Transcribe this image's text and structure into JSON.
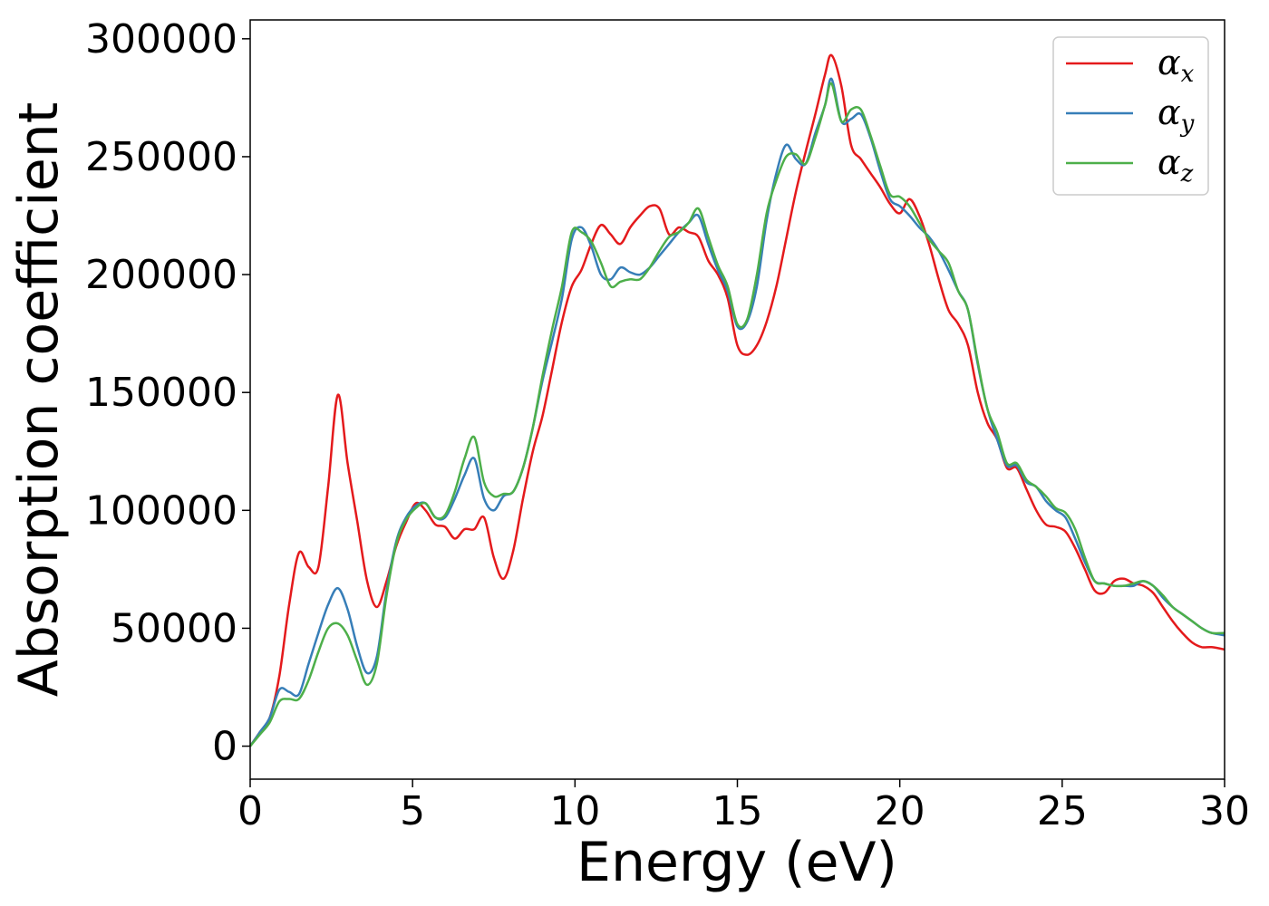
{
  "chart_data": {
    "type": "line",
    "xlabel": "Energy (eV)",
    "ylabel": "Absorption coefficient",
    "xlim": [
      0,
      30
    ],
    "ylim": [
      -14000,
      308000
    ],
    "xticks": [
      0,
      5,
      10,
      15,
      20,
      25,
      30
    ],
    "yticks": [
      0,
      50000,
      100000,
      150000,
      200000,
      250000,
      300000
    ],
    "grid": false,
    "legend_position": "top-right",
    "series": [
      {
        "name": "α",
        "subscript": "x",
        "color": "#e41a1c",
        "x": [
          0,
          0.3,
          0.6,
          0.9,
          1.2,
          1.5,
          1.8,
          2.1,
          2.4,
          2.7,
          3.0,
          3.3,
          3.6,
          3.9,
          4.2,
          4.5,
          4.8,
          5.1,
          5.4,
          5.7,
          6.0,
          6.3,
          6.6,
          6.9,
          7.2,
          7.5,
          7.8,
          8.1,
          8.4,
          8.7,
          9.0,
          9.3,
          9.6,
          9.9,
          10.2,
          10.5,
          10.8,
          11.1,
          11.4,
          11.7,
          12.0,
          12.3,
          12.6,
          12.9,
          13.2,
          13.5,
          13.8,
          14.1,
          14.4,
          14.7,
          15.0,
          15.3,
          15.6,
          15.9,
          16.2,
          16.5,
          16.8,
          17.1,
          17.4,
          17.7,
          17.9,
          18.2,
          18.5,
          18.8,
          19.1,
          19.4,
          19.7,
          20.0,
          20.3,
          20.6,
          20.9,
          21.2,
          21.5,
          21.8,
          22.1,
          22.4,
          22.7,
          23.0,
          23.3,
          23.6,
          23.9,
          24.2,
          24.5,
          24.8,
          25.1,
          25.4,
          25.7,
          26.0,
          26.3,
          26.6,
          26.9,
          27.2,
          27.5,
          27.8,
          28.1,
          28.4,
          28.7,
          29.0,
          29.3,
          29.6,
          30.0
        ],
        "y": [
          0,
          6000,
          12000,
          30000,
          60000,
          82000,
          76000,
          76000,
          110000,
          149000,
          120000,
          95000,
          70000,
          59000,
          70000,
          85000,
          95000,
          103000,
          100000,
          94000,
          93000,
          88000,
          92000,
          92000,
          97000,
          80000,
          71000,
          83000,
          105000,
          125000,
          140000,
          160000,
          180000,
          195000,
          202000,
          213000,
          221000,
          217000,
          213000,
          220000,
          225000,
          229000,
          228000,
          217000,
          220000,
          218000,
          216000,
          206000,
          200000,
          190000,
          170000,
          166000,
          170000,
          180000,
          195000,
          215000,
          235000,
          252000,
          268000,
          285000,
          293000,
          280000,
          255000,
          249000,
          243000,
          237000,
          230000,
          226000,
          232000,
          225000,
          213000,
          198000,
          185000,
          179000,
          170000,
          150000,
          137000,
          130000,
          118000,
          118000,
          109000,
          100000,
          94000,
          93000,
          91000,
          84000,
          75000,
          66000,
          65000,
          70000,
          71000,
          69000,
          68000,
          65000,
          59000,
          53000,
          48000,
          44000,
          42000,
          42000,
          41000
        ]
      },
      {
        "name": "α",
        "subscript": "y",
        "color": "#377eb8",
        "x": [
          0,
          0.3,
          0.6,
          0.9,
          1.2,
          1.5,
          1.8,
          2.1,
          2.4,
          2.7,
          3.0,
          3.3,
          3.6,
          3.9,
          4.2,
          4.5,
          4.8,
          5.1,
          5.4,
          5.7,
          6.0,
          6.3,
          6.6,
          6.9,
          7.2,
          7.5,
          7.8,
          8.1,
          8.4,
          8.7,
          9.0,
          9.3,
          9.6,
          9.9,
          10.2,
          10.5,
          10.8,
          11.1,
          11.4,
          11.7,
          12.0,
          12.3,
          12.6,
          12.9,
          13.2,
          13.5,
          13.8,
          14.1,
          14.4,
          14.7,
          15.0,
          15.3,
          15.6,
          15.9,
          16.2,
          16.5,
          16.8,
          17.1,
          17.4,
          17.7,
          17.9,
          18.2,
          18.5,
          18.8,
          19.1,
          19.4,
          19.7,
          20.0,
          20.3,
          20.6,
          20.9,
          21.2,
          21.5,
          21.8,
          22.1,
          22.4,
          22.7,
          23.0,
          23.3,
          23.6,
          23.9,
          24.2,
          24.5,
          24.8,
          25.1,
          25.4,
          25.7,
          26.0,
          26.3,
          26.6,
          26.9,
          27.2,
          27.5,
          27.8,
          28.1,
          28.4,
          28.7,
          29.0,
          29.3,
          29.6,
          30.0
        ],
        "y": [
          0,
          6000,
          12000,
          24000,
          23000,
          22000,
          35000,
          48000,
          60000,
          67000,
          58000,
          42000,
          31000,
          38000,
          66000,
          87000,
          97000,
          102000,
          103000,
          97000,
          97000,
          105000,
          115000,
          122000,
          105000,
          100000,
          106000,
          108000,
          118000,
          135000,
          155000,
          172000,
          190000,
          215000,
          220000,
          212000,
          200000,
          198000,
          203000,
          201000,
          200000,
          203000,
          208000,
          213000,
          218000,
          222000,
          225000,
          213000,
          202000,
          193000,
          178000,
          180000,
          195000,
          223000,
          243000,
          255000,
          249000,
          247000,
          260000,
          272000,
          283000,
          265000,
          266000,
          268000,
          258000,
          244000,
          232000,
          229000,
          225000,
          220000,
          216000,
          210000,
          202000,
          193000,
          185000,
          162000,
          143000,
          130000,
          119000,
          119000,
          112000,
          110000,
          104000,
          100000,
          97000,
          88000,
          78000,
          70000,
          69000,
          68000,
          68000,
          68000,
          70000,
          68000,
          63000,
          59000,
          56000,
          53000,
          50000,
          48000,
          47000
        ]
      },
      {
        "name": "α",
        "subscript": "z",
        "color": "#4daf4a",
        "x": [
          0,
          0.3,
          0.6,
          0.9,
          1.2,
          1.5,
          1.8,
          2.1,
          2.4,
          2.7,
          3.0,
          3.3,
          3.6,
          3.9,
          4.2,
          4.5,
          4.8,
          5.1,
          5.4,
          5.7,
          6.0,
          6.3,
          6.6,
          6.9,
          7.2,
          7.5,
          7.8,
          8.1,
          8.4,
          8.7,
          9.0,
          9.3,
          9.6,
          9.9,
          10.2,
          10.5,
          10.8,
          11.1,
          11.4,
          11.7,
          12.0,
          12.3,
          12.6,
          12.9,
          13.2,
          13.5,
          13.8,
          14.1,
          14.4,
          14.7,
          15.0,
          15.3,
          15.6,
          15.9,
          16.2,
          16.5,
          16.8,
          17.1,
          17.4,
          17.7,
          17.9,
          18.2,
          18.5,
          18.8,
          19.1,
          19.4,
          19.7,
          20.0,
          20.3,
          20.6,
          20.9,
          21.2,
          21.5,
          21.8,
          22.1,
          22.4,
          22.7,
          23.0,
          23.3,
          23.6,
          23.9,
          24.2,
          24.5,
          24.8,
          25.1,
          25.4,
          25.7,
          26.0,
          26.3,
          26.6,
          26.9,
          27.2,
          27.5,
          27.8,
          28.1,
          28.4,
          28.7,
          29.0,
          29.3,
          29.6,
          30.0
        ],
        "y": [
          0,
          5000,
          10000,
          19000,
          20000,
          20000,
          28000,
          40000,
          50000,
          52000,
          47000,
          36000,
          26000,
          35000,
          64000,
          86000,
          96000,
          101000,
          103000,
          97000,
          98000,
          108000,
          122000,
          131000,
          112000,
          106000,
          107000,
          108000,
          118000,
          135000,
          157000,
          177000,
          195000,
          218000,
          218000,
          214000,
          205000,
          195000,
          197000,
          198000,
          198000,
          203000,
          210000,
          216000,
          218000,
          222000,
          228000,
          216000,
          204000,
          195000,
          179000,
          181000,
          200000,
          226000,
          240000,
          250000,
          251000,
          247000,
          258000,
          272000,
          281000,
          265000,
          270000,
          270000,
          259000,
          246000,
          234000,
          233000,
          229000,
          222000,
          215000,
          210000,
          205000,
          193000,
          185000,
          163000,
          143000,
          133000,
          120000,
          120000,
          113000,
          110000,
          106000,
          101000,
          99000,
          92000,
          80000,
          70000,
          69000,
          68000,
          68000,
          69000,
          70000,
          68000,
          64000,
          59000,
          56000,
          53000,
          50000,
          48000,
          48000
        ]
      }
    ]
  }
}
